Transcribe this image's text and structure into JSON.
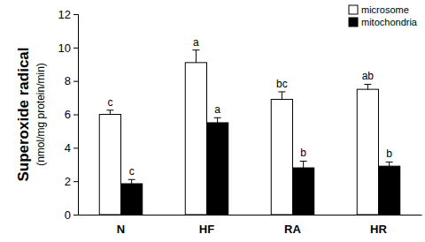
{
  "chart_data": {
    "type": "bar",
    "y_label": [
      "Superoxide radical",
      "(nmol/mg protein/min)"
    ],
    "categories": [
      "N",
      "HF",
      "RA",
      "HR"
    ],
    "series": [
      {
        "name": "microsome",
        "color": "#ffffff",
        "values": [
          6.0,
          9.1,
          6.9,
          7.5
        ],
        "errors": [
          0.25,
          0.75,
          0.45,
          0.3
        ],
        "annotations": [
          "c",
          "a",
          "bc",
          "ab"
        ]
      },
      {
        "name": "mitochondria",
        "color": "#000000",
        "values": [
          1.85,
          5.5,
          2.8,
          2.9
        ],
        "errors": [
          0.25,
          0.3,
          0.4,
          0.25
        ],
        "annotations": [
          "c",
          "a",
          "b",
          "b"
        ]
      }
    ],
    "ylim": [
      0,
      12
    ],
    "yticks": [
      0,
      2,
      4,
      6,
      8,
      10,
      12
    ],
    "grid": false,
    "legend": "top-right"
  }
}
